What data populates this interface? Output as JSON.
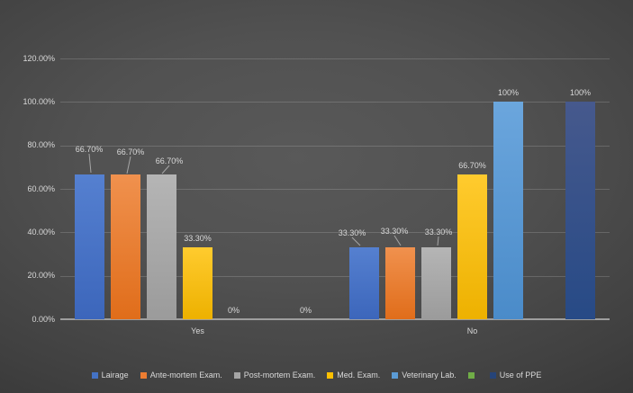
{
  "chart_data": {
    "type": "bar",
    "title": "",
    "categories": [
      "Yes",
      "No"
    ],
    "y_ticks": [
      "120.00%",
      "100.00%",
      "80.00%",
      "60.00%",
      "40.00%",
      "20.00%",
      "0.00%"
    ],
    "ylim": [
      0,
      120
    ],
    "grid": true,
    "legend_position": "bottom",
    "series": [
      {
        "name": "Lairage",
        "color": "#4472C4",
        "gradient": [
          "#5580D0",
          "#3C66BB"
        ],
        "values": [
          66.7,
          33.3
        ],
        "labels": [
          "66.70%",
          "33.30%"
        ]
      },
      {
        "name": "Ante-mortem Exam.",
        "color": "#ED7D31",
        "gradient": [
          "#F0914E",
          "#E06D1A"
        ],
        "values": [
          66.7,
          33.3
        ],
        "labels": [
          "66.70%",
          "33.30%"
        ]
      },
      {
        "name": "Post-mortem Exam.",
        "color": "#A5A5A5",
        "gradient": [
          "#B5B5B5",
          "#9B9B9B"
        ],
        "values": [
          66.7,
          33.3
        ],
        "labels": [
          "66.70%",
          "33.30%"
        ]
      },
      {
        "name": "Med. Exam.",
        "color": "#FFC000",
        "gradient": [
          "#FFCB2E",
          "#EDB100"
        ],
        "values": [
          33.3,
          66.7
        ],
        "labels": [
          "33.30%",
          "66.70%"
        ]
      },
      {
        "name": "Veterinary Lab.",
        "color": "#5B9BD5",
        "gradient": [
          "#6BA6DD",
          "#4A8BC9"
        ],
        "values": [
          0,
          100
        ],
        "labels": [
          "0%",
          "100%"
        ]
      },
      {
        "name": "",
        "color": "#70AD47",
        "gradient": [
          "#7CB954",
          "#65A03D"
        ],
        "values": [
          null,
          null
        ],
        "labels": [
          "",
          ""
        ]
      },
      {
        "name": "Use of PPE",
        "color": "#264478",
        "gradient": [
          "#46598D",
          "#274A86"
        ],
        "values": [
          0,
          100
        ],
        "labels": [
          "0%",
          "100%"
        ]
      }
    ]
  },
  "colors": {
    "text": "#D9D9D9",
    "gridline": "rgba(255,255,255,0.16)",
    "axis_line": "#9E9E9E",
    "leader_line": "#A6A6A6"
  }
}
